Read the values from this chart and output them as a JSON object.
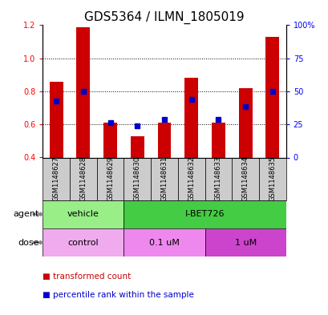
{
  "title": "GDS5364 / ILMN_1805019",
  "samples": [
    "GSM1148627",
    "GSM1148628",
    "GSM1148629",
    "GSM1148630",
    "GSM1148631",
    "GSM1148632",
    "GSM1148633",
    "GSM1148634",
    "GSM1148635"
  ],
  "transformed_count": [
    0.86,
    1.19,
    0.61,
    0.53,
    0.61,
    0.88,
    0.61,
    0.82,
    1.13
  ],
  "percentile_rank": [
    0.74,
    0.8,
    0.61,
    0.59,
    0.63,
    0.75,
    0.63,
    0.71,
    0.8
  ],
  "bar_bottom": 0.4,
  "ylim_left": [
    0.4,
    1.2
  ],
  "ylim_right": [
    0,
    100
  ],
  "yticks_left": [
    0.4,
    0.6,
    0.8,
    1.0,
    1.2
  ],
  "yticks_right": [
    0,
    25,
    50,
    75,
    100
  ],
  "ytick_labels_right": [
    "0",
    "25",
    "50",
    "75",
    "100%"
  ],
  "bar_color": "#cc0000",
  "dot_color": "#0000cc",
  "agent_vehicle_color": "#99ee88",
  "agent_ibet_color": "#44cc44",
  "dose_control_color": "#f0aaee",
  "dose_01_color": "#ee88ee",
  "dose_1_color": "#cc44cc",
  "legend_tc": "transformed count",
  "legend_pr": "percentile rank within the sample",
  "title_fontsize": 11,
  "tick_fontsize": 7,
  "annotation_fontsize": 8,
  "sample_fontsize": 6
}
